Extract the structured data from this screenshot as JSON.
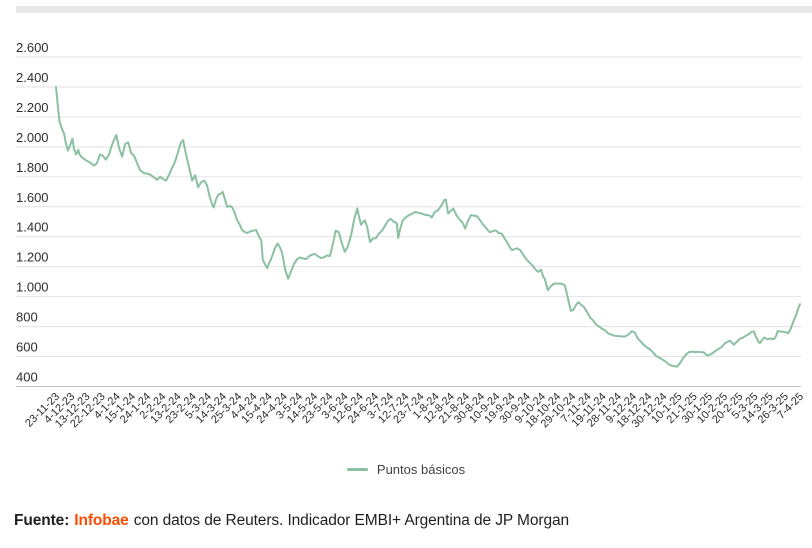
{
  "page": {
    "background": "#ffffff",
    "top_bar_color": "#e7e7e7"
  },
  "legend": {
    "label": "Puntos básicos",
    "swatch_color": "#8bc0a2"
  },
  "footer": {
    "source_label": "Fuente:",
    "source_name": "Infobae",
    "source_rest": "con datos de Reuters. Indicador EMBI+ Argentina de JP Morgan",
    "brand_color": "#fc4c02",
    "text_color": "#1f1f1f"
  },
  "chart_data": {
    "type": "line",
    "title": "",
    "xlabel": "",
    "ylabel": "",
    "unit": "puntos básicos",
    "grid": true,
    "legend_position": "bottom",
    "line_color": "#8bc0a2",
    "grid_color": "#e2e2e2",
    "axis_color": "#c2c2c2",
    "tick_text_color": "#2d2d2d",
    "ylim": [
      400,
      2600
    ],
    "y_axis": {
      "min": 400,
      "max": 2600,
      "step": 200,
      "tick_labels": [
        "2.600",
        "2.400",
        "2.200",
        "2.000",
        "1.800",
        "1.600",
        "1.400",
        "1.200",
        "1.000",
        "800",
        "600",
        "400"
      ]
    },
    "x_axis": {
      "rotation": -45,
      "tick_labels": [
        "23-11-23",
        "4-12-23",
        "13-12-23",
        "22-12-23",
        "4-1-24",
        "15-1-24",
        "24-1-24",
        "2-2-24",
        "13-2-24",
        "23-2-24",
        "5-3-24",
        "14-3-24",
        "25-3-24",
        "4-4-24",
        "15-4-24",
        "24-4-24",
        "3-5-24",
        "14-5-24",
        "23-5-24",
        "3-6-24",
        "12-6-24",
        "24-6-24",
        "3-7-24",
        "12-7-24",
        "23-7-24",
        "1-8-24",
        "12-8-24",
        "21-8-24",
        "30-8-24",
        "10-9-24",
        "19-9-24",
        "30-9-24",
        "9-10-24",
        "18-10-24",
        "29-10-24",
        "7-11-24",
        "19-11-24",
        "28-11-24",
        "9-12-24",
        "18-12-24",
        "30-12-24",
        "10-1-25",
        "21-1-25",
        "30-1-25",
        "10-2-25",
        "20-2-25",
        "5-3-25",
        "14-3-25",
        "26-3-25",
        "7-4-25"
      ]
    },
    "series": [
      {
        "name": "Puntos básicos",
        "points": [
          [
            0,
            2400
          ],
          [
            0.003,
            2250
          ],
          [
            0.005,
            2165
          ],
          [
            0.008,
            2120
          ],
          [
            0.011,
            2085
          ],
          [
            0.013,
            2030
          ],
          [
            0.016,
            1975
          ],
          [
            0.019,
            2010
          ],
          [
            0.022,
            2055
          ],
          [
            0.024,
            1990
          ],
          [
            0.027,
            1950
          ],
          [
            0.03,
            1980
          ],
          [
            0.032,
            1945
          ],
          [
            0.036,
            1925
          ],
          [
            0.04,
            1910
          ],
          [
            0.046,
            1895
          ],
          [
            0.051,
            1875
          ],
          [
            0.055,
            1890
          ],
          [
            0.059,
            1950
          ],
          [
            0.063,
            1940
          ],
          [
            0.067,
            1915
          ],
          [
            0.071,
            1945
          ],
          [
            0.075,
            2010
          ],
          [
            0.081,
            2080
          ],
          [
            0.085,
            1990
          ],
          [
            0.089,
            1935
          ],
          [
            0.093,
            2020
          ],
          [
            0.097,
            2030
          ],
          [
            0.101,
            1960
          ],
          [
            0.105,
            1940
          ],
          [
            0.109,
            1890
          ],
          [
            0.113,
            1845
          ],
          [
            0.118,
            1825
          ],
          [
            0.124,
            1820
          ],
          [
            0.128,
            1810
          ],
          [
            0.132,
            1795
          ],
          [
            0.136,
            1780
          ],
          [
            0.14,
            1800
          ],
          [
            0.144,
            1785
          ],
          [
            0.148,
            1775
          ],
          [
            0.152,
            1815
          ],
          [
            0.156,
            1860
          ],
          [
            0.16,
            1900
          ],
          [
            0.164,
            1965
          ],
          [
            0.168,
            2030
          ],
          [
            0.171,
            2045
          ],
          [
            0.173,
            1990
          ],
          [
            0.176,
            1925
          ],
          [
            0.18,
            1840
          ],
          [
            0.183,
            1775
          ],
          [
            0.187,
            1810
          ],
          [
            0.191,
            1730
          ],
          [
            0.195,
            1765
          ],
          [
            0.199,
            1775
          ],
          [
            0.203,
            1745
          ],
          [
            0.207,
            1660
          ],
          [
            0.21,
            1615
          ],
          [
            0.212,
            1595
          ],
          [
            0.215,
            1650
          ],
          [
            0.218,
            1680
          ],
          [
            0.222,
            1690
          ],
          [
            0.224,
            1700
          ],
          [
            0.227,
            1650
          ],
          [
            0.23,
            1600
          ],
          [
            0.234,
            1605
          ],
          [
            0.237,
            1595
          ],
          [
            0.241,
            1550
          ],
          [
            0.243,
            1515
          ],
          [
            0.247,
            1480
          ],
          [
            0.25,
            1445
          ],
          [
            0.254,
            1430
          ],
          [
            0.257,
            1425
          ],
          [
            0.261,
            1435
          ],
          [
            0.265,
            1440
          ],
          [
            0.269,
            1445
          ],
          [
            0.273,
            1400
          ],
          [
            0.276,
            1375
          ],
          [
            0.278,
            1245
          ],
          [
            0.281,
            1215
          ],
          [
            0.284,
            1190
          ],
          [
            0.286,
            1220
          ],
          [
            0.289,
            1250
          ],
          [
            0.292,
            1290
          ],
          [
            0.294,
            1320
          ],
          [
            0.298,
            1355
          ],
          [
            0.301,
            1330
          ],
          [
            0.304,
            1290
          ],
          [
            0.308,
            1180
          ],
          [
            0.312,
            1120
          ],
          [
            0.316,
            1170
          ],
          [
            0.32,
            1220
          ],
          [
            0.324,
            1250
          ],
          [
            0.328,
            1262
          ],
          [
            0.332,
            1255
          ],
          [
            0.336,
            1250
          ],
          [
            0.34,
            1270
          ],
          [
            0.344,
            1280
          ],
          [
            0.348,
            1285
          ],
          [
            0.352,
            1270
          ],
          [
            0.356,
            1258
          ],
          [
            0.36,
            1262
          ],
          [
            0.364,
            1275
          ],
          [
            0.368,
            1270
          ],
          [
            0.372,
            1350
          ],
          [
            0.376,
            1440
          ],
          [
            0.38,
            1430
          ],
          [
            0.384,
            1360
          ],
          [
            0.388,
            1300
          ],
          [
            0.392,
            1330
          ],
          [
            0.397,
            1420
          ],
          [
            0.401,
            1520
          ],
          [
            0.405,
            1588
          ],
          [
            0.407,
            1540
          ],
          [
            0.41,
            1480
          ],
          [
            0.413,
            1500
          ],
          [
            0.415,
            1510
          ],
          [
            0.418,
            1470
          ],
          [
            0.422,
            1365
          ],
          [
            0.426,
            1388
          ],
          [
            0.43,
            1390
          ],
          [
            0.434,
            1420
          ],
          [
            0.438,
            1440
          ],
          [
            0.442,
            1470
          ],
          [
            0.446,
            1505
          ],
          [
            0.45,
            1520
          ],
          [
            0.454,
            1500
          ],
          [
            0.458,
            1490
          ],
          [
            0.46,
            1392
          ],
          [
            0.462,
            1440
          ],
          [
            0.466,
            1510
          ],
          [
            0.47,
            1530
          ],
          [
            0.475,
            1545
          ],
          [
            0.479,
            1555
          ],
          [
            0.483,
            1565
          ],
          [
            0.487,
            1560
          ],
          [
            0.491,
            1555
          ],
          [
            0.495,
            1548
          ],
          [
            0.499,
            1545
          ],
          [
            0.503,
            1540
          ],
          [
            0.505,
            1528
          ],
          [
            0.509,
            1565
          ],
          [
            0.513,
            1575
          ],
          [
            0.517,
            1600
          ],
          [
            0.522,
            1645
          ],
          [
            0.524,
            1648
          ],
          [
            0.527,
            1555
          ],
          [
            0.531,
            1575
          ],
          [
            0.534,
            1588
          ],
          [
            0.538,
            1545
          ],
          [
            0.542,
            1518
          ],
          [
            0.546,
            1498
          ],
          [
            0.55,
            1455
          ],
          [
            0.554,
            1510
          ],
          [
            0.558,
            1545
          ],
          [
            0.562,
            1540
          ],
          [
            0.566,
            1537
          ],
          [
            0.57,
            1510
          ],
          [
            0.574,
            1480
          ],
          [
            0.577,
            1465
          ],
          [
            0.581,
            1440
          ],
          [
            0.583,
            1430
          ],
          [
            0.587,
            1437
          ],
          [
            0.591,
            1443
          ],
          [
            0.595,
            1425
          ],
          [
            0.599,
            1420
          ],
          [
            0.604,
            1380
          ],
          [
            0.606,
            1365
          ],
          [
            0.61,
            1330
          ],
          [
            0.613,
            1310
          ],
          [
            0.617,
            1318
          ],
          [
            0.62,
            1322
          ],
          [
            0.624,
            1310
          ],
          [
            0.628,
            1280
          ],
          [
            0.632,
            1250
          ],
          [
            0.636,
            1230
          ],
          [
            0.64,
            1210
          ],
          [
            0.644,
            1185
          ],
          [
            0.648,
            1165
          ],
          [
            0.652,
            1180
          ],
          [
            0.655,
            1130
          ],
          [
            0.657,
            1120
          ],
          [
            0.661,
            1042
          ],
          [
            0.665,
            1070
          ],
          [
            0.669,
            1086
          ],
          [
            0.675,
            1088
          ],
          [
            0.68,
            1086
          ],
          [
            0.684,
            1075
          ],
          [
            0.688,
            990
          ],
          [
            0.692,
            905
          ],
          [
            0.695,
            910
          ],
          [
            0.699,
            945
          ],
          [
            0.702,
            963
          ],
          [
            0.706,
            945
          ],
          [
            0.71,
            928
          ],
          [
            0.714,
            895
          ],
          [
            0.718,
            860
          ],
          [
            0.722,
            840
          ],
          [
            0.726,
            815
          ],
          [
            0.73,
            800
          ],
          [
            0.734,
            785
          ],
          [
            0.738,
            775
          ],
          [
            0.742,
            755
          ],
          [
            0.746,
            747
          ],
          [
            0.75,
            740
          ],
          [
            0.754,
            737
          ],
          [
            0.758,
            735
          ],
          [
            0.762,
            734
          ],
          [
            0.766,
            736
          ],
          [
            0.77,
            750
          ],
          [
            0.774,
            769
          ],
          [
            0.778,
            760
          ],
          [
            0.782,
            720
          ],
          [
            0.786,
            700
          ],
          [
            0.79,
            678
          ],
          [
            0.794,
            662
          ],
          [
            0.798,
            650
          ],
          [
            0.802,
            630
          ],
          [
            0.806,
            606
          ],
          [
            0.81,
            595
          ],
          [
            0.815,
            580
          ],
          [
            0.819,
            568
          ],
          [
            0.823,
            550
          ],
          [
            0.827,
            540
          ],
          [
            0.831,
            535
          ],
          [
            0.835,
            533
          ],
          [
            0.839,
            558
          ],
          [
            0.843,
            590
          ],
          [
            0.847,
            615
          ],
          [
            0.851,
            630
          ],
          [
            0.855,
            633
          ],
          [
            0.859,
            630
          ],
          [
            0.863,
            632
          ],
          [
            0.867,
            630
          ],
          [
            0.871,
            628
          ],
          [
            0.875,
            606
          ],
          [
            0.879,
            612
          ],
          [
            0.883,
            625
          ],
          [
            0.887,
            640
          ],
          [
            0.891,
            652
          ],
          [
            0.895,
            665
          ],
          [
            0.899,
            688
          ],
          [
            0.903,
            700
          ],
          [
            0.906,
            706
          ],
          [
            0.909,
            690
          ],
          [
            0.911,
            680
          ],
          [
            0.915,
            698
          ],
          [
            0.919,
            718
          ],
          [
            0.923,
            725
          ],
          [
            0.927,
            738
          ],
          [
            0.932,
            752
          ],
          [
            0.935,
            765
          ],
          [
            0.938,
            768
          ],
          [
            0.941,
            730
          ],
          [
            0.944,
            700
          ],
          [
            0.946,
            690
          ],
          [
            0.949,
            710
          ],
          [
            0.952,
            727
          ],
          [
            0.954,
            720
          ],
          [
            0.957,
            715
          ],
          [
            0.96,
            722
          ],
          [
            0.962,
            718
          ],
          [
            0.965,
            716
          ],
          [
            0.968,
            740
          ],
          [
            0.97,
            770
          ],
          [
            0.973,
            768
          ],
          [
            0.976,
            766
          ],
          [
            0.978,
            765
          ],
          [
            0.981,
            762
          ],
          [
            0.984,
            755
          ],
          [
            0.987,
            780
          ],
          [
            0.989,
            805
          ],
          [
            0.992,
            845
          ],
          [
            0.995,
            880
          ],
          [
            0.997,
            915
          ],
          [
            1,
            950
          ]
        ]
      }
    ]
  }
}
